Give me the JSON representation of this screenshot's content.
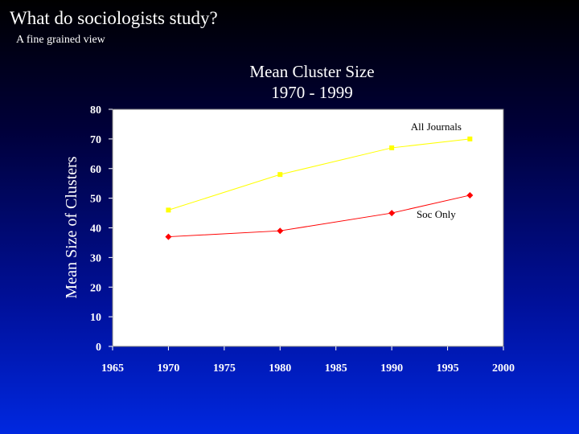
{
  "slide": {
    "title": "What do sociologists study?",
    "subtitle": "A fine grained view"
  },
  "chart_data": {
    "type": "line",
    "title_lines": [
      "Mean Cluster Size",
      "1970 - 1999"
    ],
    "xlabel": "",
    "ylabel": "Mean Size of Clusters",
    "xlim": [
      1965,
      2000
    ],
    "ylim": [
      0,
      80
    ],
    "x_ticks": [
      1965,
      1970,
      1975,
      1980,
      1985,
      1990,
      1995,
      2000
    ],
    "y_ticks": [
      0,
      10,
      20,
      30,
      40,
      50,
      60,
      70,
      80
    ],
    "grid": false,
    "legend": "none",
    "plot_background": "#ffffff",
    "series": [
      {
        "name": "All Journals",
        "color": "#ffff00",
        "marker": "square",
        "points": [
          {
            "x": 1970,
            "y": 46
          },
          {
            "x": 1980,
            "y": 58
          },
          {
            "x": 1990,
            "y": 67
          },
          {
            "x": 1997,
            "y": 70
          }
        ]
      },
      {
        "name": "Soc Only",
        "color": "#ff0000",
        "marker": "diamond",
        "points": [
          {
            "x": 1970,
            "y": 37
          },
          {
            "x": 1980,
            "y": 39
          },
          {
            "x": 1990,
            "y": 45
          },
          {
            "x": 1997,
            "y": 51
          }
        ]
      }
    ]
  }
}
